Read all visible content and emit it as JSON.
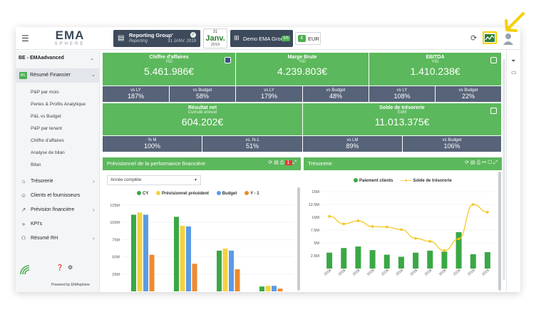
{
  "topbar": {
    "logo_main": "EMA",
    "logo_sub": "SPHERE",
    "report": {
      "title": "Reporting Group'",
      "subtitle": "Reporting",
      "date": "31 JANV. 2019"
    },
    "calendar": {
      "day": "31",
      "month": "Janv.",
      "year": "2019"
    },
    "group": {
      "name": "Demo EMA Group",
      "badge": "5/5"
    },
    "currency": "EUR"
  },
  "sidebar": {
    "company": "BE - EMAadvanced",
    "active": {
      "icon": "BIL",
      "label": "Résumé Financier"
    },
    "subitems": [
      "P&P par mois",
      "Pertes & Profits Analytique",
      "P&L vs Budget",
      "P&P par tenant",
      "Chiffre d'affaires",
      "Analyse de bilan",
      "Bilan"
    ],
    "items": [
      {
        "label": "Trésorerie",
        "icon": "bank-icon"
      },
      {
        "label": "Clients et fournisseurs",
        "icon": "users-icon"
      },
      {
        "label": "Prévision financière",
        "icon": "trend-icon"
      },
      {
        "label": "KPI's",
        "icon": "double-chevron-icon"
      },
      {
        "label": "Résumé RH",
        "icon": "people-icon"
      }
    ],
    "powered": "Powered by EMAsphere"
  },
  "kpis_row1": [
    {
      "title": "Chiffre d'affaires",
      "sub": "YtD",
      "value": "5.461.986€",
      "checked": true
    },
    {
      "title": "Marge Brute",
      "sub": "YtD",
      "value": "4.239.803€",
      "checked": false
    },
    {
      "title": "EBITDA",
      "sub": "YtD",
      "value": "1.410.238€",
      "checked": false
    }
  ],
  "cmp_row1": [
    {
      "label": "vs LY",
      "value": "187%"
    },
    {
      "label": "vs Budget",
      "value": "58%"
    },
    {
      "label": "vs LY",
      "value": "179%"
    },
    {
      "label": "vs Budget",
      "value": "48%"
    },
    {
      "label": "vs LY",
      "value": "108%"
    },
    {
      "label": "vs Budget",
      "value": "22%"
    }
  ],
  "kpis_row2": [
    {
      "title": "Résultat net",
      "sub": "Cumulé annuel",
      "value": "604.202€"
    },
    {
      "title": "Solde de trésorerie",
      "sub": "EoM",
      "value": "11.013.375€"
    }
  ],
  "cmp_row2": [
    {
      "label": "% M",
      "value": "100%"
    },
    {
      "label": "vs. N-1",
      "value": "51%"
    },
    {
      "label": "vs LM",
      "value": "89%"
    },
    {
      "label": "vs Budget",
      "value": "106%"
    }
  ],
  "panel_left": {
    "title": "Prévisionnel de la performance financière",
    "badge": "1",
    "select": "Année complète"
  },
  "panel_right": {
    "title": "Trésorerie"
  },
  "colors": {
    "green": "#5cb85c",
    "slate": "#566378",
    "cy": "#3aa845",
    "prev": "#f5d142",
    "budget": "#5b9be5",
    "y1": "#f08a2e"
  },
  "chart_data": [
    {
      "type": "bar",
      "legend_position": "top",
      "series": [
        {
          "name": "CY",
          "values": [
            111,
            108,
            59,
            7
          ]
        },
        {
          "name": "Prévisionnel précédent",
          "values": [
            114,
            95,
            62,
            8
          ]
        },
        {
          "name": "Budget",
          "values": [
            111,
            94,
            59,
            8
          ]
        },
        {
          "name": "Y - 1",
          "values": [
            53,
            40,
            32,
            4
          ]
        }
      ],
      "yticks": [
        "125M",
        "100M",
        "75M",
        "50M",
        "25M"
      ],
      "ylim": [
        0,
        130
      ]
    },
    {
      "type": "line",
      "legend_position": "top",
      "series": [
        {
          "name": "Paiement clients",
          "kind": "bar",
          "values": [
            3.1,
            4.0,
            4.3,
            3.6,
            2.7,
            2.3,
            3.1,
            3.5,
            3.3,
            7.1,
            2.8,
            3.2
          ]
        },
        {
          "name": "Solde de trésorerie",
          "kind": "line",
          "values": [
            10.2,
            8.7,
            9.3,
            8.2,
            8.1,
            7.6,
            5.9,
            5.3,
            3.5,
            5.8,
            12.5,
            11.0
          ]
        }
      ],
      "yticks": [
        "15M",
        "12.5M",
        "10M",
        "7.5M",
        "5M",
        "2.5M"
      ],
      "xticks": [
        "2018",
        "2018",
        "2018",
        "2018",
        "2018",
        "2018",
        "2018",
        "2018",
        "2018",
        "2018",
        "2018",
        "2019"
      ],
      "ylim": [
        0,
        15
      ]
    }
  ]
}
